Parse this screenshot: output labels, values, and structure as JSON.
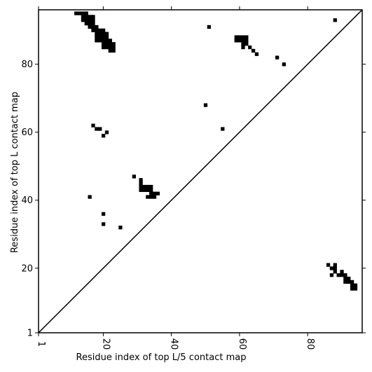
{
  "chart_data": {
    "type": "heatmap",
    "title": "",
    "xlabel": "Residue index of top L/5 contact map",
    "ylabel": "Residue index of top L contact map",
    "xlim": [
      1,
      96
    ],
    "ylim": [
      1,
      96
    ],
    "xticks": [
      1,
      20,
      40,
      60,
      80
    ],
    "yticks": [
      1,
      20,
      40,
      60,
      80
    ],
    "grid": false,
    "diagonal": true,
    "colors": {
      "contact": "#000000",
      "background": "#ffffff",
      "frame": "#000000"
    },
    "top_l_contacts": [
      [
        12,
        95
      ],
      [
        13,
        95
      ],
      [
        14,
        95
      ],
      [
        15,
        95
      ],
      [
        14,
        94
      ],
      [
        15,
        94
      ],
      [
        16,
        94
      ],
      [
        17,
        94
      ],
      [
        14,
        93
      ],
      [
        15,
        93
      ],
      [
        16,
        93
      ],
      [
        17,
        93
      ],
      [
        15,
        92
      ],
      [
        16,
        92
      ],
      [
        17,
        92
      ],
      [
        16,
        91
      ],
      [
        17,
        91
      ],
      [
        18,
        91
      ],
      [
        17,
        90
      ],
      [
        18,
        90
      ],
      [
        19,
        90
      ],
      [
        20,
        90
      ],
      [
        18,
        89
      ],
      [
        19,
        89
      ],
      [
        20,
        89
      ],
      [
        21,
        89
      ],
      [
        18,
        88
      ],
      [
        19,
        88
      ],
      [
        20,
        88
      ],
      [
        21,
        88
      ],
      [
        18,
        87
      ],
      [
        19,
        87
      ],
      [
        20,
        87
      ],
      [
        21,
        87
      ],
      [
        22,
        87
      ],
      [
        20,
        86
      ],
      [
        21,
        86
      ],
      [
        22,
        86
      ],
      [
        23,
        86
      ],
      [
        20,
        85
      ],
      [
        21,
        85
      ],
      [
        22,
        85
      ],
      [
        23,
        85
      ],
      [
        22,
        84
      ],
      [
        23,
        84
      ],
      [
        51,
        91
      ],
      [
        59,
        88
      ],
      [
        60,
        88
      ],
      [
        61,
        88
      ],
      [
        62,
        88
      ],
      [
        59,
        87
      ],
      [
        60,
        87
      ],
      [
        61,
        87
      ],
      [
        62,
        87
      ],
      [
        61,
        86
      ],
      [
        62,
        86
      ],
      [
        61,
        85
      ],
      [
        63,
        85
      ],
      [
        64,
        84
      ],
      [
        65,
        83
      ],
      [
        71,
        82
      ],
      [
        73,
        80
      ],
      [
        88,
        93
      ],
      [
        50,
        68
      ],
      [
        55,
        61
      ],
      [
        17,
        62
      ],
      [
        18,
        61
      ],
      [
        19,
        61
      ],
      [
        21,
        60
      ],
      [
        20,
        59
      ],
      [
        29,
        47
      ],
      [
        31,
        46
      ],
      [
        31,
        45
      ],
      [
        31,
        44
      ],
      [
        32,
        44
      ],
      [
        33,
        44
      ],
      [
        34,
        44
      ],
      [
        31,
        43
      ],
      [
        32,
        43
      ],
      [
        33,
        43
      ],
      [
        34,
        43
      ],
      [
        34,
        42
      ],
      [
        35,
        42
      ],
      [
        36,
        42
      ],
      [
        33,
        41
      ],
      [
        34,
        41
      ],
      [
        35,
        41
      ],
      [
        16,
        41
      ],
      [
        20,
        36
      ],
      [
        20,
        33
      ],
      [
        25,
        32
      ]
    ],
    "top_l5_contacts": [
      [
        86,
        21
      ],
      [
        88,
        21
      ],
      [
        87,
        20
      ],
      [
        88,
        20
      ],
      [
        88,
        19
      ],
      [
        90,
        19
      ],
      [
        87,
        18
      ],
      [
        89,
        18
      ],
      [
        90,
        18
      ],
      [
        91,
        18
      ],
      [
        91,
        17
      ],
      [
        92,
        17
      ],
      [
        91,
        16
      ],
      [
        92,
        16
      ],
      [
        93,
        16
      ],
      [
        93,
        15
      ],
      [
        94,
        15
      ],
      [
        93,
        14
      ],
      [
        94,
        14
      ]
    ]
  }
}
